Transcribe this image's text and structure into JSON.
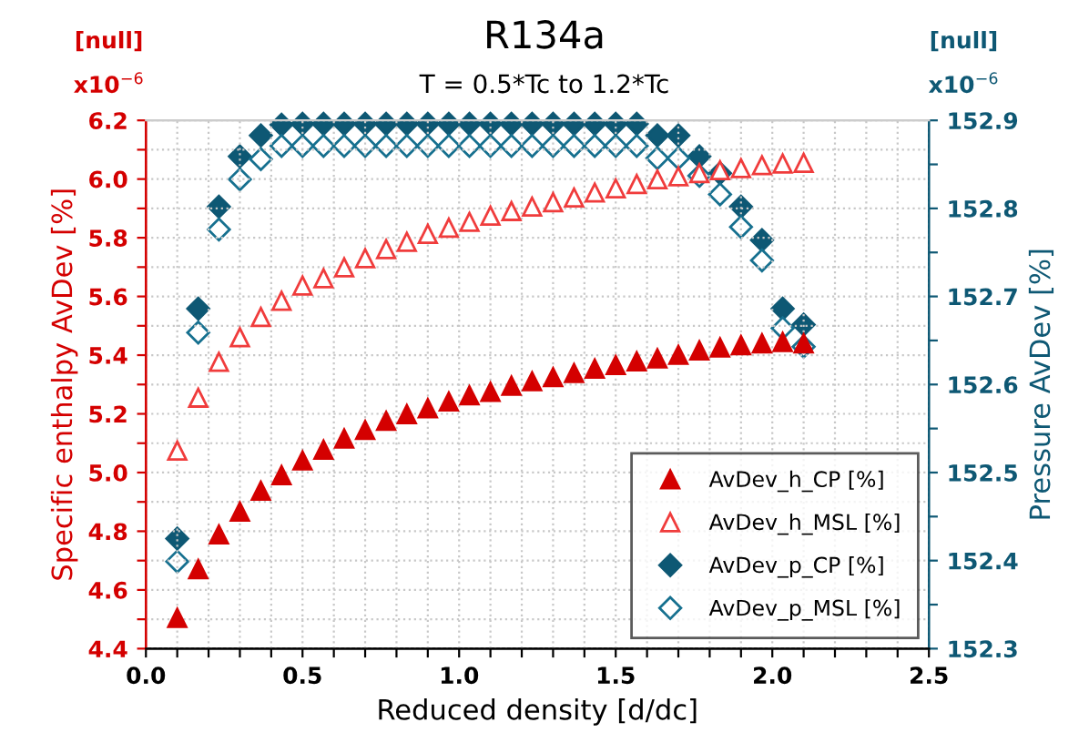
{
  "chart_data": {
    "type": "scatter",
    "title": "R134a",
    "subtitle": "T = 0.5*Tc to 1.2*Tc",
    "xlabel": "Reduced density [d/dc]",
    "ylabel": "Specific enthalpy AvDev [%]",
    "y2label": "Pressure AvDev [%]",
    "annotations": [
      "[null]",
      "x10$^{−6}$",
      "[null]",
      "x10$^{−6}$"
    ],
    "x": [
      0.1,
      0.167,
      0.233,
      0.3,
      0.367,
      0.433,
      0.5,
      0.567,
      0.633,
      0.7,
      0.767,
      0.833,
      0.9,
      0.967,
      1.033,
      1.1,
      1.167,
      1.233,
      1.3,
      1.367,
      1.433,
      1.5,
      1.567,
      1.633,
      1.7,
      1.767,
      1.833,
      1.9,
      1.967,
      2.033,
      2.1
    ],
    "series": [
      {
        "name": "AvDev_h_CP [%]",
        "color": "#d40000",
        "marker": "triangle",
        "values": [
          4.505,
          4.671,
          4.789,
          4.867,
          4.938,
          4.991,
          5.041,
          5.078,
          5.116,
          5.145,
          5.176,
          5.199,
          5.219,
          5.242,
          5.263,
          5.275,
          5.296,
          5.311,
          5.325,
          5.339,
          5.354,
          5.366,
          5.379,
          5.389,
          5.401,
          5.416,
          5.426,
          5.434,
          5.44,
          5.445,
          5.44
        ]
      },
      {
        "name": "AvDev_h_MSL [%]",
        "color": "#f03c3c",
        "marker": "triangle",
        "values": [
          5.075,
          5.255,
          5.377,
          5.461,
          5.53,
          5.585,
          5.637,
          5.662,
          5.699,
          5.73,
          5.761,
          5.786,
          5.813,
          5.834,
          5.854,
          5.875,
          5.891,
          5.906,
          5.921,
          5.937,
          5.954,
          5.968,
          5.983,
          5.999,
          6.009,
          6.02,
          6.03,
          6.037,
          6.047,
          6.053,
          6.055
        ]
      },
      {
        "name": "AvDev_p_CP [%]",
        "color": "#0e5874",
        "marker": "diamond",
        "axis": "y2",
        "values": [
          152.425,
          152.686,
          152.802,
          152.859,
          152.883,
          152.895,
          152.896,
          152.896,
          152.896,
          152.896,
          152.896,
          152.896,
          152.896,
          152.896,
          152.896,
          152.896,
          152.896,
          152.896,
          152.896,
          152.896,
          152.896,
          152.896,
          152.896,
          152.883,
          152.883,
          152.859,
          152.84,
          152.802,
          152.764,
          152.686,
          152.668
        ]
      },
      {
        "name": "AvDev_p_MSL [%]",
        "color": "#16708f",
        "marker": "diamond",
        "axis": "y2",
        "values": [
          152.399,
          152.659,
          152.776,
          152.833,
          152.856,
          152.871,
          152.871,
          152.871,
          152.871,
          152.871,
          152.871,
          152.871,
          152.871,
          152.871,
          152.871,
          152.871,
          152.871,
          152.871,
          152.871,
          152.871,
          152.871,
          152.871,
          152.871,
          152.857,
          152.857,
          152.837,
          152.816,
          152.779,
          152.741,
          152.664,
          152.643
        ]
      }
    ],
    "xlim": [
      0.0,
      2.5
    ],
    "xticks": [
      {
        "value": 0,
        "label": "0.0"
      },
      {
        "value": 0.1,
        "label": null
      },
      {
        "value": 0.2,
        "label": null
      },
      {
        "value": 0.3,
        "label": null
      },
      {
        "value": 0.4,
        "label": null
      },
      0.5,
      {
        "value": 0.6,
        "label": null
      },
      {
        "value": 0.7,
        "label": null
      },
      {
        "value": 0.8,
        "label": null
      },
      {
        "value": 0.9,
        "label": null
      },
      {
        "value": 1,
        "label": "1.0"
      },
      {
        "value": 1.1,
        "label": null
      },
      {
        "value": 1.2,
        "label": null
      },
      {
        "value": 1.3,
        "label": null
      },
      {
        "value": 1.4,
        "label": null
      },
      1.5,
      {
        "value": 1.6,
        "label": null
      },
      {
        "value": 1.7,
        "label": null
      },
      {
        "value": 1.8,
        "label": null
      },
      {
        "value": 1.9,
        "label": null
      },
      {
        "value": 2,
        "label": "2.0"
      },
      {
        "value": 2.1,
        "label": null
      },
      {
        "value": 2.2,
        "label": null
      },
      {
        "value": 2.3,
        "label": null
      },
      {
        "value": 2.4,
        "label": null
      },
      2.5
    ],
    "ylim": [
      4.4,
      6.2
    ],
    "yticks": [
      4.4,
      {
        "value": 4.5,
        "label": null
      },
      4.6,
      {
        "value": 4.7,
        "label": null
      },
      4.8,
      {
        "value": 4.9,
        "label": null
      },
      {
        "value": 5,
        "label": "5.0"
      },
      {
        "value": 5.1,
        "label": null
      },
      5.2,
      {
        "value": 5.3,
        "label": null
      },
      5.4,
      {
        "value": 5.5,
        "label": null
      },
      5.6,
      {
        "value": 5.7,
        "label": null
      },
      5.8,
      {
        "value": 5.9,
        "label": null
      },
      {
        "value": 6,
        "label": "6.0"
      },
      {
        "value": 6.1,
        "label": null
      },
      6.2
    ],
    "y2lim": [
      152.3,
      152.9
    ],
    "y2ticks": [
      152.3,
      {
        "value": 152.35,
        "label": null
      },
      152.4,
      {
        "value": 152.45,
        "label": null
      },
      152.5,
      {
        "value": 152.55,
        "label": null
      },
      152.6,
      {
        "value": 152.65,
        "label": null
      },
      152.7,
      {
        "value": 152.75,
        "label": null
      },
      152.8,
      {
        "value": 152.85,
        "label": null
      },
      152.9
    ],
    "grid": true,
    "legend": "bottom right"
  }
}
